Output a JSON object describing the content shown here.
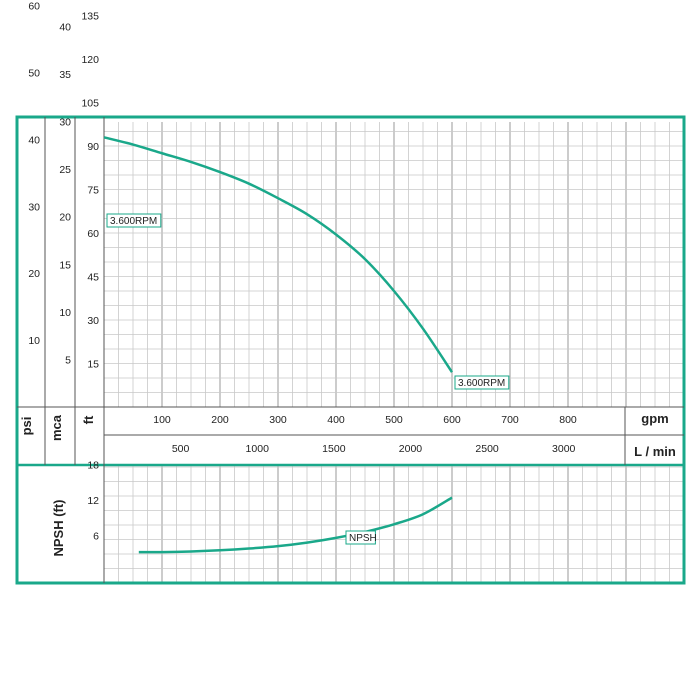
{
  "colors": {
    "frame": "#1aa88a",
    "curve": "#1aa88a",
    "grid": "#9a9a9a",
    "grid_minor": "#c8c8c8",
    "text": "#222222"
  },
  "units": {
    "psi": "psi",
    "mca": "mca",
    "ft": "ft",
    "gpm": "gpm",
    "lmin": "L / min",
    "npsh": "NPSH (ft)"
  },
  "chart_data": [
    {
      "type": "line",
      "title": "",
      "xlabel": "gpm",
      "ylabel": "ft",
      "xlim": [
        0,
        900
      ],
      "ylim": [
        0,
        150
      ],
      "x_ticks": [
        100,
        200,
        300,
        400,
        500,
        600,
        700,
        800
      ],
      "x2_label": "L / min",
      "x2_ticks": [
        500,
        1000,
        1500,
        2000,
        2500,
        3000
      ],
      "y_ticks_ft": [
        15,
        30,
        45,
        60,
        75,
        90,
        105,
        120,
        135
      ],
      "y_ticks_mca": [
        5,
        10,
        15,
        20,
        25,
        30,
        35,
        40
      ],
      "y_ticks_psi": [
        10,
        20,
        30,
        40,
        50,
        60
      ],
      "grid": true,
      "series": [
        {
          "name": "3.600RPM",
          "x": [
            0,
            50,
            100,
            150,
            200,
            250,
            300,
            350,
            400,
            450,
            500,
            550,
            600
          ],
          "y": [
            93,
            90.5,
            87.5,
            84.5,
            81,
            77,
            72,
            66.5,
            59.5,
            51,
            40,
            27,
            12
          ]
        }
      ],
      "annotations": [
        {
          "text": "3.600RPM",
          "x": 0,
          "y": 93
        },
        {
          "text": "3.600RPM",
          "x": 600,
          "y": 12
        }
      ]
    },
    {
      "type": "line",
      "title": "",
      "xlabel": "gpm",
      "ylabel": "NPSH (ft)",
      "xlim": [
        0,
        900
      ],
      "ylim": [
        0,
        24
      ],
      "y_ticks": [
        6,
        12,
        18
      ],
      "grid": true,
      "series": [
        {
          "name": "NPSH",
          "x": [
            60,
            100,
            150,
            200,
            250,
            300,
            350,
            400,
            450,
            500,
            550,
            600
          ],
          "y": [
            3.2,
            3.2,
            3.3,
            3.5,
            3.8,
            4.2,
            4.8,
            5.6,
            6.6,
            7.9,
            9.6,
            12.4
          ]
        }
      ],
      "annotations": [
        {
          "text": "NPSH",
          "x": 450,
          "y": 7.3
        }
      ]
    }
  ]
}
